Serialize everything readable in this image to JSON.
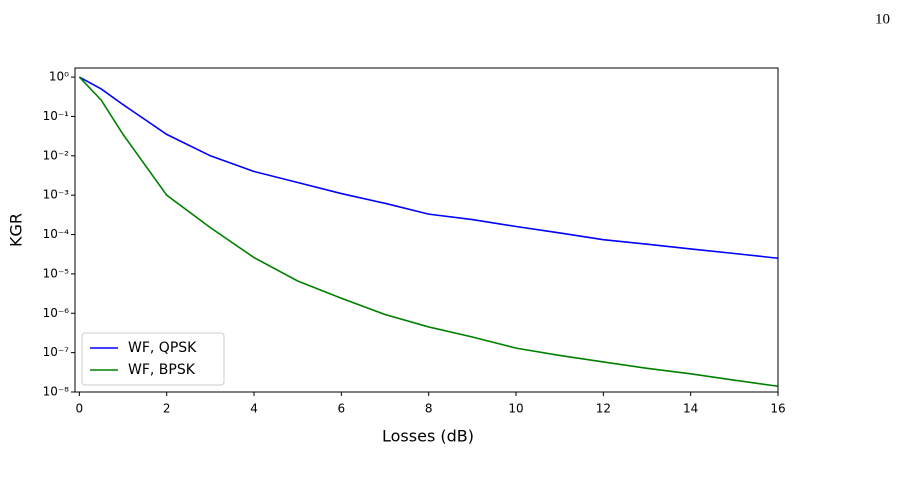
{
  "page_number": "10",
  "chart_data": {
    "type": "line",
    "x_label": "Losses (dB)",
    "y_label": "KGR",
    "x": [
      0,
      0.5,
      1,
      2,
      3,
      4,
      5,
      6,
      7,
      8,
      9,
      10,
      11,
      12,
      13,
      14,
      15,
      16
    ],
    "series": [
      {
        "name": "WF, QPSK",
        "color": "#0000ff",
        "values": [
          1,
          0.5,
          0.2,
          0.035,
          0.01,
          0.004,
          0.0021,
          0.0011,
          0.00062,
          0.00033,
          0.00024,
          0.00016,
          0.00011,
          7.4e-05,
          5.7e-05,
          4.3e-05,
          3.3e-05,
          2.5e-05
        ]
      },
      {
        "name": "WF, BPSK",
        "color": "#008000",
        "values": [
          1,
          0.26,
          0.035,
          0.001,
          0.00015,
          2.6e-05,
          6.6e-06,
          2.4e-06,
          9.3e-07,
          4.5e-07,
          2.5e-07,
          1.3e-07,
          8.5e-08,
          5.8e-08,
          4e-08,
          2.9e-08,
          2e-08,
          1.4e-08
        ]
      }
    ],
    "log_y": true,
    "xlim": [
      -0.1,
      16
    ],
    "ylim": [
      1e-08,
      1.7
    ],
    "xticks": [
      0,
      2,
      4,
      6,
      8,
      10,
      12,
      14,
      16
    ],
    "yticks": [
      {
        "value": 1,
        "label": "10⁰"
      },
      {
        "value": 0.1,
        "label": "10⁻¹"
      },
      {
        "value": 0.01,
        "label": "10⁻²"
      },
      {
        "value": 0.001,
        "label": "10⁻³"
      },
      {
        "value": 0.0001,
        "label": "10⁻⁴"
      },
      {
        "value": 1e-05,
        "label": "10⁻⁵"
      },
      {
        "value": 1e-06,
        "label": "10⁻⁶"
      },
      {
        "value": 1e-07,
        "label": "10⁻⁷"
      },
      {
        "value": 1e-08,
        "label": "10⁻⁸"
      }
    ],
    "legend": "lower left",
    "grid": false
  }
}
